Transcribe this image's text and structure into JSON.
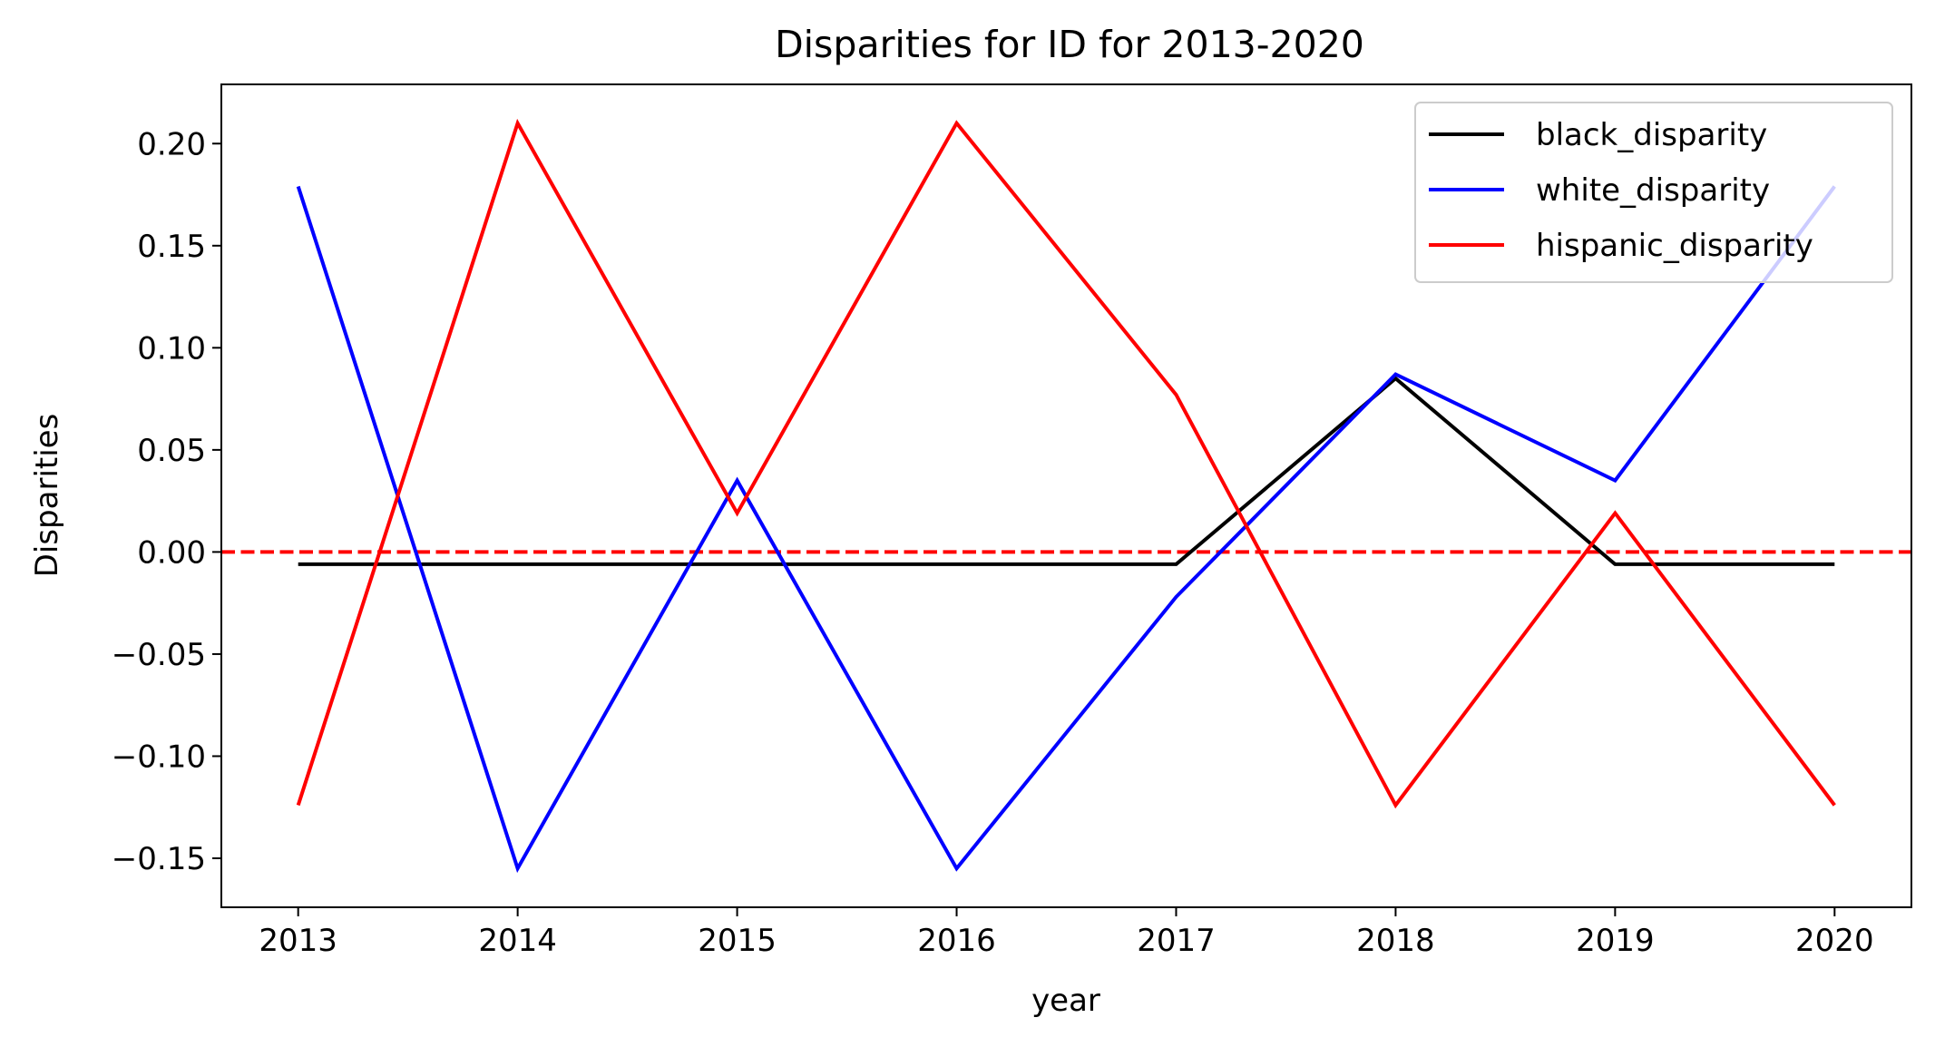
{
  "chart_data": {
    "type": "line",
    "title": "Disparities for ID for 2013-2020",
    "xlabel": "year",
    "ylabel": "Disparities",
    "x": [
      2013,
      2014,
      2015,
      2016,
      2017,
      2018,
      2019,
      2020
    ],
    "x_tick_labels": [
      "2013",
      "2014",
      "2015",
      "2016",
      "2017",
      "2018",
      "2019",
      "2020"
    ],
    "y_ticks": [
      -0.15,
      -0.1,
      -0.05,
      0.0,
      0.05,
      0.1,
      0.15,
      0.2
    ],
    "y_tick_labels": [
      "−0.15",
      "−0.10",
      "−0.05",
      "0.00",
      "0.05",
      "0.10",
      "0.15",
      "0.20"
    ],
    "xlim": [
      2012.65,
      2020.35
    ],
    "ylim": [
      -0.174,
      0.229
    ],
    "grid": false,
    "legend_position": "top-right",
    "series": [
      {
        "name": "black_disparity",
        "color": "#000000",
        "values": [
          -0.006,
          -0.006,
          -0.006,
          -0.006,
          -0.006,
          0.085,
          -0.006,
          -0.006
        ]
      },
      {
        "name": "white_disparity",
        "color": "#0000ff",
        "values": [
          0.179,
          -0.155,
          0.035,
          -0.155,
          -0.022,
          0.087,
          0.035,
          0.179
        ]
      },
      {
        "name": "hispanic_disparity",
        "color": "#ff0000",
        "values": [
          -0.124,
          0.21,
          0.019,
          0.21,
          0.077,
          -0.124,
          0.019,
          -0.124
        ]
      }
    ],
    "reference_line": {
      "y": 0.0,
      "color": "#ff0000",
      "style": "dashed"
    }
  }
}
